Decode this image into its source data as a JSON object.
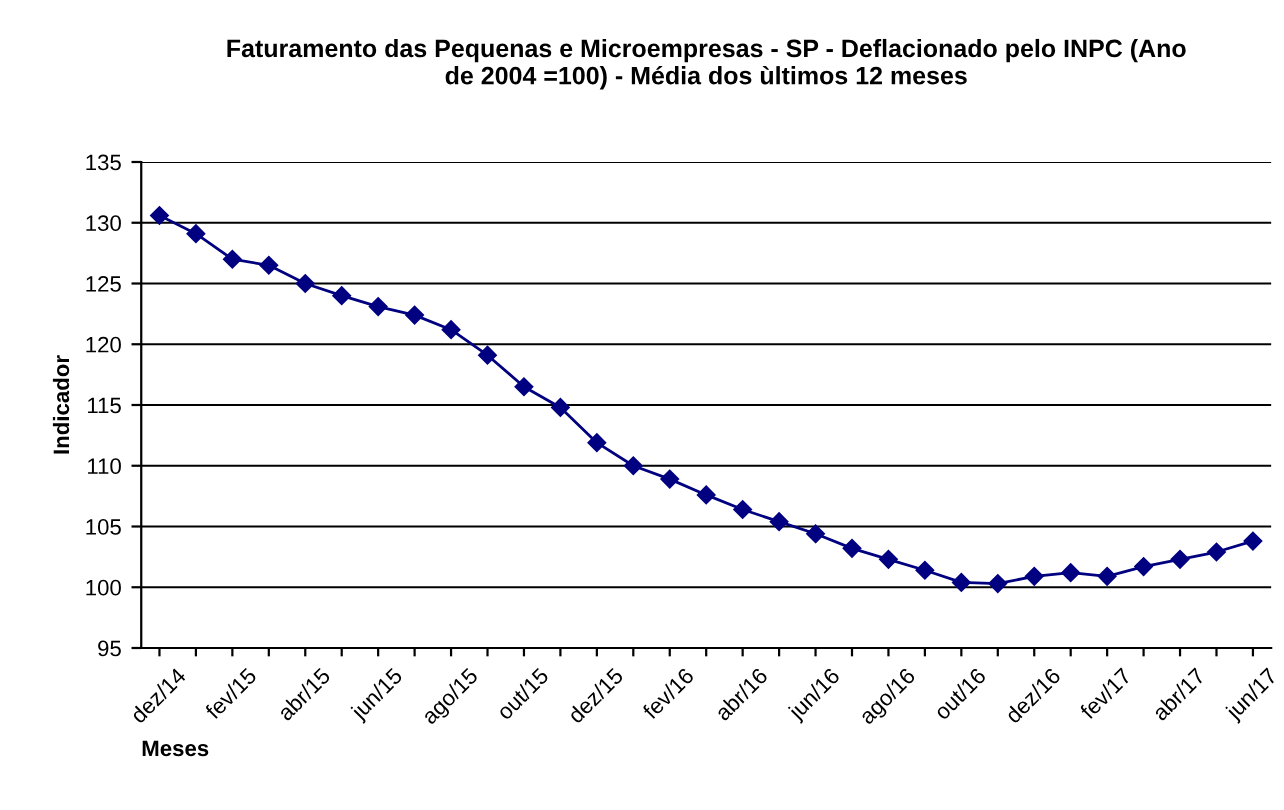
{
  "chart_data": {
    "type": "line",
    "title": "Faturamento das Pequenas e Microempresas - SP - Deflacionado pelo INPC (Ano\nde 2004 =100) - Média dos ùltimos 12 meses",
    "xlabel": "Meses",
    "ylabel": "Indicador",
    "categories": [
      "dez/14",
      null,
      "fev/15",
      null,
      "abr/15",
      null,
      "jun/15",
      null,
      "ago/15",
      null,
      "out/15",
      null,
      "dez/15",
      null,
      "fev/16",
      null,
      "abr/16",
      null,
      "jun/16",
      null,
      "ago/16",
      null,
      "out/16",
      null,
      "dez/16",
      null,
      "fev/17",
      null,
      "abr/17",
      null,
      "jun/17"
    ],
    "series": [
      {
        "color": "#000080",
        "values": [
          130.6,
          129.1,
          127.0,
          126.5,
          125.0,
          124.0,
          123.1,
          122.4,
          121.2,
          119.1,
          116.5,
          114.8,
          111.9,
          110.0,
          108.9,
          107.6,
          106.4,
          105.4,
          104.4,
          103.2,
          102.3,
          101.4,
          100.4,
          100.3,
          100.9,
          101.2,
          100.9,
          101.7,
          102.3,
          102.9,
          103.8
        ]
      }
    ],
    "ylim": [
      95,
      135
    ],
    "yticks": [
      95,
      100,
      105,
      110,
      115,
      120,
      125,
      130,
      135
    ],
    "grid": "y",
    "marker": "diamond",
    "line_style": "solid",
    "legend": false
  }
}
